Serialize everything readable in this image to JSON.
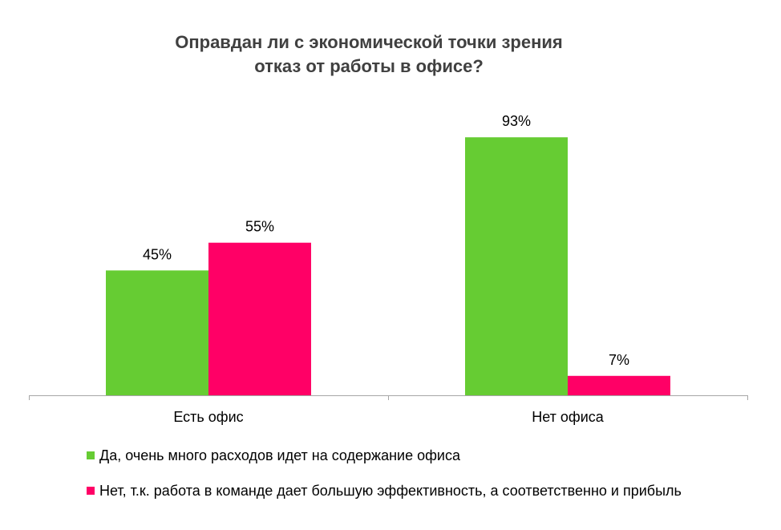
{
  "chart_data": {
    "type": "bar",
    "title": [
      "Оправдан ли с экономической точки зрения",
      "отказ от работы в офисе?"
    ],
    "categories": [
      "Есть офис",
      "Нет офиса"
    ],
    "series": [
      {
        "name": "Да, очень много расходов идет на содержание офиса",
        "values": [
          45,
          93
        ],
        "labels": [
          "45%",
          "93%"
        ],
        "color": "#66CC33"
      },
      {
        "name": "Нет, т.к. работа в команде дает большую эффективность, а соответственно и прибыль",
        "values": [
          55,
          7
        ],
        "labels": [
          "55%",
          "7%"
        ],
        "color": "#FF0066"
      }
    ],
    "ylim": [
      0,
      100
    ],
    "grid": false,
    "legend_position": "bottom-left",
    "axis_color": "#A6A6A6"
  }
}
